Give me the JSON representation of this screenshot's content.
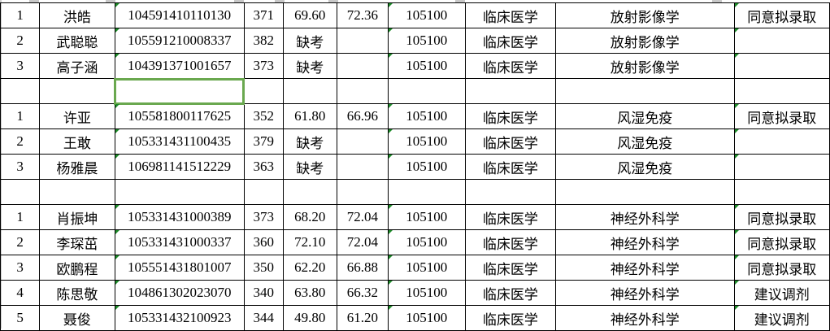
{
  "colors": {
    "grid": "#000000",
    "selection": "#6aa84f",
    "marker": "#1e8c2a"
  },
  "rows": [
    {
      "no": "1",
      "name": "洪皓",
      "id": "104591410110130",
      "initial": "371",
      "retest": "69.60",
      "total": "72.36",
      "code": "105100",
      "major": "临床医学",
      "direction": "放射影像学",
      "result": "同意拟录取"
    },
    {
      "no": "2",
      "name": "武聪聪",
      "id": "105591210008337",
      "initial": "382",
      "retest": "缺考",
      "total": "",
      "code": "105100",
      "major": "临床医学",
      "direction": "放射影像学",
      "result": ""
    },
    {
      "no": "3",
      "name": "高子涵",
      "id": "104391371001657",
      "initial": "373",
      "retest": "缺考",
      "total": "",
      "code": "105100",
      "major": "临床医学",
      "direction": "放射影像学",
      "result": ""
    },
    {
      "blank": true
    },
    {
      "no": "1",
      "name": "许亚",
      "id": "105581800117625",
      "initial": "352",
      "retest": "61.80",
      "total": "66.96",
      "code": "105100",
      "major": "临床医学",
      "direction": "风湿免疫",
      "result": "同意拟录取"
    },
    {
      "no": "2",
      "name": "王敢",
      "id": "105331431100435",
      "initial": "379",
      "retest": "缺考",
      "total": "",
      "code": "105100",
      "major": "临床医学",
      "direction": "风湿免疫",
      "result": ""
    },
    {
      "no": "3",
      "name": "杨雅晨",
      "id": "106981141512229",
      "initial": "363",
      "retest": "缺考",
      "total": "",
      "code": "105100",
      "major": "临床医学",
      "direction": "风湿免疫",
      "result": ""
    },
    {
      "blank": true
    },
    {
      "no": "1",
      "name": "肖振坤",
      "id": "105331431000389",
      "initial": "373",
      "retest": "68.20",
      "total": "72.04",
      "code": "105100",
      "major": "临床医学",
      "direction": "神经外科学",
      "result": "同意拟录取"
    },
    {
      "no": "2",
      "name": "李琛茁",
      "id": "105331431000337",
      "initial": "360",
      "retest": "72.10",
      "total": "72.04",
      "code": "105100",
      "major": "临床医学",
      "direction": "神经外科学",
      "result": "同意拟录取"
    },
    {
      "no": "3",
      "name": "欧鹏程",
      "id": "105551431801007",
      "initial": "350",
      "retest": "62.20",
      "total": "66.88",
      "code": "105100",
      "major": "临床医学",
      "direction": "神经外科学",
      "result": "同意拟录取"
    },
    {
      "no": "4",
      "name": "陈思敬",
      "id": "104861302023070",
      "initial": "340",
      "retest": "63.80",
      "total": "66.32",
      "code": "105100",
      "major": "临床医学",
      "direction": "神经外科学",
      "result": "建议调剂"
    },
    {
      "no": "5",
      "name": "聂俊",
      "id": "105331432100923",
      "initial": "344",
      "retest": "49.80",
      "total": "61.20",
      "code": "105100",
      "major": "临床医学",
      "direction": "神经外科学",
      "result": "建议调剂"
    }
  ]
}
